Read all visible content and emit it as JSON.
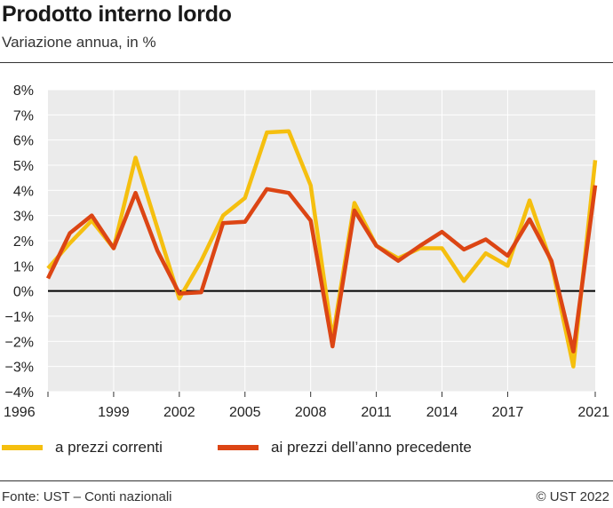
{
  "title": "Prodotto interno lordo",
  "subtitle": "Variazione annua, in %",
  "footer": {
    "source": "Fonte: UST – Conti nazionali",
    "copyright": "© UST 2022"
  },
  "colors": {
    "plot_background": "#ebebeb",
    "grid": "#ffffff",
    "zero_line": "#000000",
    "series_correnti": "#f5bf0f",
    "series_precedente": "#dc4514"
  },
  "chart_data": {
    "type": "line",
    "x": [
      1996,
      1997,
      1998,
      1999,
      2000,
      2001,
      2002,
      2003,
      2004,
      2005,
      2006,
      2007,
      2008,
      2009,
      2010,
      2011,
      2012,
      2013,
      2014,
      2015,
      2016,
      2017,
      2018,
      2019,
      2020,
      2021
    ],
    "x_tick_labels": [
      "1996",
      "1999",
      "2002",
      "2005",
      "2008",
      "2011",
      "2014",
      "2017",
      "2021"
    ],
    "x_ticks": [
      1996,
      1999,
      2002,
      2005,
      2008,
      2011,
      2014,
      2017,
      2021
    ],
    "xlim": [
      1996,
      2021
    ],
    "ylim": [
      -4,
      8
    ],
    "y_ticks": [
      8,
      7,
      6,
      5,
      4,
      3,
      2,
      1,
      0,
      -1,
      -2,
      -3,
      -4
    ],
    "y_tick_labels": [
      "8%",
      "7%",
      "6%",
      "5%",
      "4%",
      "3%",
      "2%",
      "1%",
      "0%",
      "−1%",
      "−2%",
      "−3%",
      "−4%"
    ],
    "grid": true,
    "legend_position": "bottom",
    "series": [
      {
        "name": "a prezzi correnti",
        "color": "#f5bf0f",
        "values": [
          0.9,
          1.9,
          2.8,
          1.7,
          5.3,
          2.5,
          -0.3,
          1.2,
          3.0,
          3.7,
          6.3,
          6.35,
          4.2,
          -1.9,
          3.5,
          1.8,
          1.3,
          1.7,
          1.7,
          0.4,
          1.5,
          1.0,
          3.6,
          1.1,
          -3.0,
          5.2
        ]
      },
      {
        "name": "ai prezzi dell’anno precedente",
        "color": "#dc4514",
        "values": [
          0.5,
          2.3,
          3.0,
          1.7,
          3.9,
          1.6,
          -0.1,
          -0.05,
          2.7,
          2.75,
          4.05,
          3.9,
          2.8,
          -2.2,
          3.2,
          1.8,
          1.2,
          1.8,
          2.35,
          1.65,
          2.05,
          1.4,
          2.85,
          1.2,
          -2.4,
          4.2
        ]
      }
    ]
  }
}
